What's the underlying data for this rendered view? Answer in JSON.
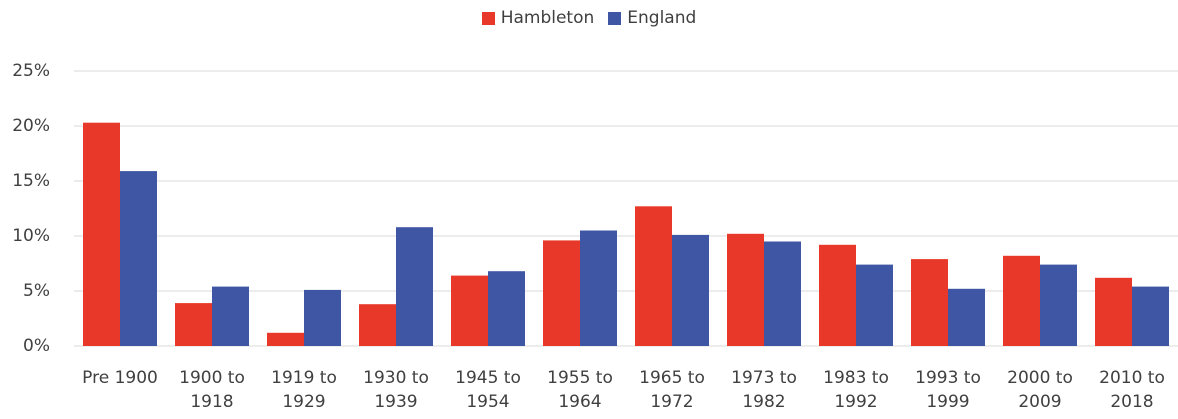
{
  "chart_data": {
    "type": "bar",
    "categories": [
      "Pre 1900",
      "1900 to 1918",
      "1919 to 1929",
      "1930 to 1939",
      "1945 to 1954",
      "1955 to 1964",
      "1965 to 1972",
      "1973 to 1982",
      "1983 to 1992",
      "1993 to 1999",
      "2000 to 2009",
      "2010 to 2018"
    ],
    "series": [
      {
        "name": "Hambleton",
        "color": "#e8382a",
        "values": [
          20.3,
          3.9,
          1.2,
          3.8,
          6.4,
          9.6,
          12.7,
          10.2,
          9.2,
          7.9,
          8.2,
          6.2
        ]
      },
      {
        "name": "England",
        "color": "#3f56a5",
        "values": [
          15.9,
          5.4,
          5.1,
          10.8,
          6.8,
          10.5,
          10.1,
          9.5,
          7.4,
          5.2,
          7.4,
          5.4
        ]
      }
    ],
    "ylim": [
      0,
      25
    ],
    "yticks": [
      {
        "value": 0,
        "label": "0%"
      },
      {
        "value": 5,
        "label": "5%"
      },
      {
        "value": 10,
        "label": "10%"
      },
      {
        "value": 15,
        "label": "15%"
      },
      {
        "value": 20,
        "label": "20%"
      },
      {
        "value": 25,
        "label": "25%"
      }
    ],
    "grid": true,
    "legend": "top"
  }
}
